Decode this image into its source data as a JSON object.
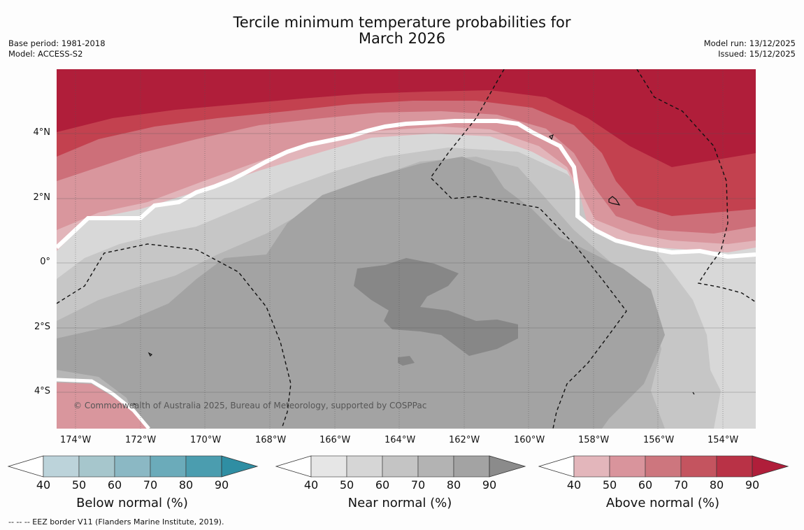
{
  "header": {
    "title_line1": "Tercile minimum temperature probabilities for",
    "title_line2": "March 2026",
    "base_period": "Base period: 1981-2018",
    "model": "Model: ACCESS-S2",
    "model_run": "Model run: 13/12/2025",
    "issued": "Issued: 15/12/2025"
  },
  "map": {
    "lon_ticks": [
      "174°W",
      "172°W",
      "170°W",
      "168°W",
      "166°W",
      "164°W",
      "162°W",
      "160°W",
      "158°W",
      "156°W",
      "154°W"
    ],
    "lat_ticks": [
      "4°N",
      "2°N",
      "0°",
      "2°S",
      "4°S"
    ],
    "copyright": "© Commonwealth of Australia 2025, Bureau of Meteorology, supported by COSPPac",
    "colors": {
      "above_90": "#b01e3a",
      "above_80": "#c3414f",
      "above_70": "#cd6f79",
      "above_60": "#d9969d",
      "above_50": "#e2b5ba",
      "near_80": "#878787",
      "near_70": "#a3a3a3",
      "near_60": "#b6b6b6",
      "near_50": "#c6c6c6",
      "near_40": "#d8d8d8",
      "boundary": "#ffffff"
    }
  },
  "colorbars": [
    {
      "name": "below",
      "label": "Below normal (%)",
      "colors": [
        "#bcd3da",
        "#a6c6cc",
        "#8bb8c4",
        "#6babba",
        "#4b9daf"
      ],
      "tip": "#2f8ea3",
      "ticks": [
        "40",
        "50",
        "60",
        "70",
        "80",
        "90"
      ]
    },
    {
      "name": "near",
      "label": "Near normal (%)",
      "colors": [
        "#e6e6e6",
        "#d6d6d6",
        "#c4c4c4",
        "#b3b3b3",
        "#a3a3a3"
      ],
      "tip": "#8b8b8b",
      "ticks": [
        "40",
        "50",
        "60",
        "70",
        "80",
        "90"
      ]
    },
    {
      "name": "above",
      "label": "Above normal (%)",
      "colors": [
        "#e3b6bb",
        "#d9949c",
        "#cd767e",
        "#c4545f",
        "#b93246"
      ],
      "tip": "#b01e3a",
      "ticks": [
        "40",
        "50",
        "60",
        "70",
        "80",
        "90"
      ]
    }
  ],
  "footer": "--  --  -- EEZ border V11 (Flanders Marine Institute, 2019)."
}
